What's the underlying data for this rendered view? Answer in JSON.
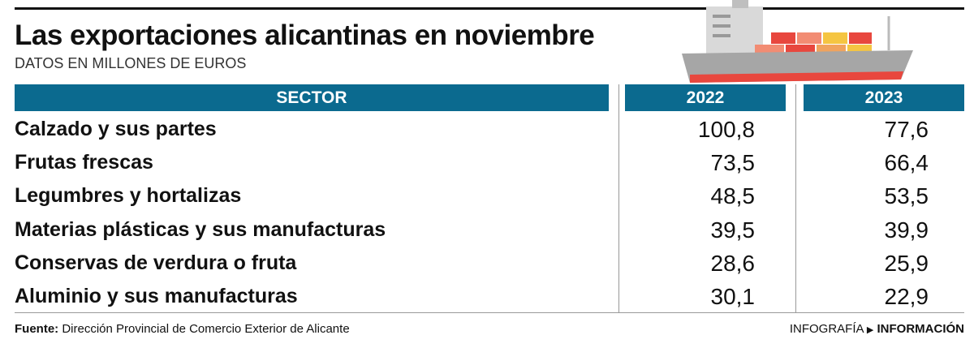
{
  "header": {
    "title": "Las exportaciones alicantinas en noviembre",
    "subtitle": "DATOS EN MILLONES DE EUROS"
  },
  "table": {
    "columns": [
      "SECTOR",
      "2022",
      "2023"
    ],
    "rows": [
      [
        "Calzado y sus partes",
        "100,8",
        "77,6"
      ],
      [
        "Frutas frescas",
        "73,5",
        "66,4"
      ],
      [
        "Legumbres y hortalizas",
        "48,5",
        "53,5"
      ],
      [
        "Materias plásticas y sus manufacturas",
        "39,5",
        "39,9"
      ],
      [
        "Conservas de verdura o fruta",
        "28,6",
        "25,9"
      ],
      [
        "Aluminio y sus manufacturas",
        "30,1",
        "22,9"
      ]
    ]
  },
  "footer": {
    "source_label": "Fuente:",
    "source": "Dirección Provincial de Comercio Exterior de Alicante",
    "credit_section": "INFOGRAFÍA",
    "credit_brand": "INFORMACIÓN"
  }
}
